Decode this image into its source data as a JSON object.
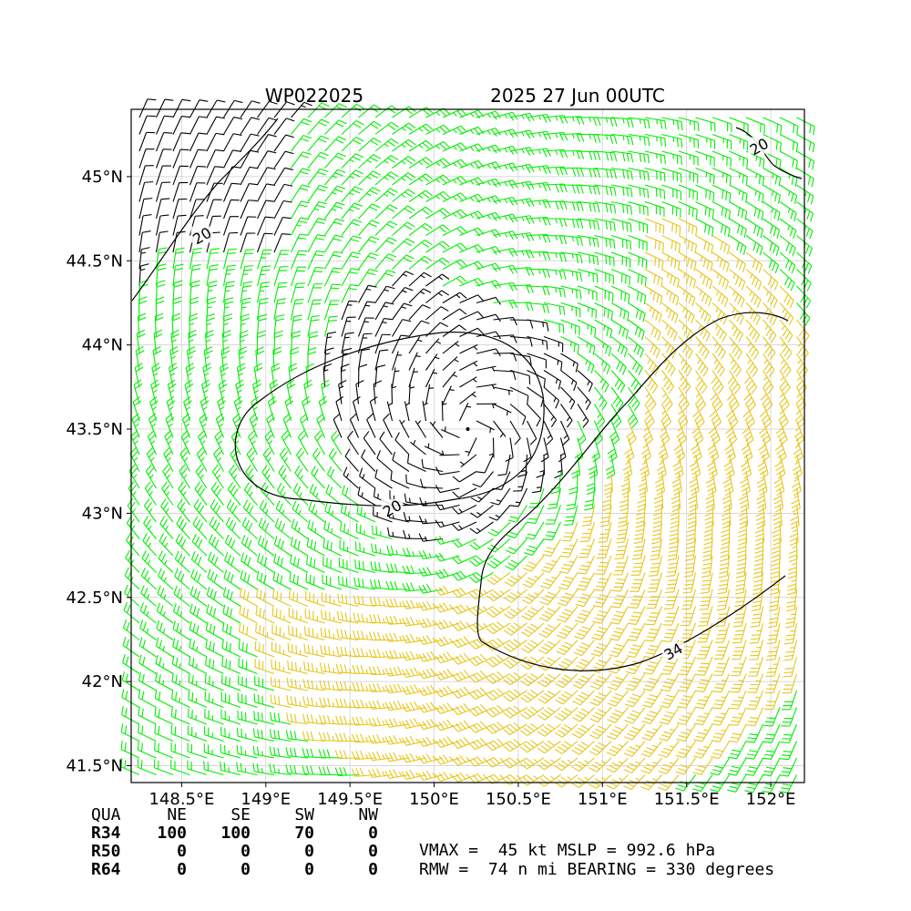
{
  "chart_data": {
    "type": "wind-barb-map",
    "title_left": "WP022025",
    "title_right": "2025 27 Jun 00UTC",
    "xlim": [
      148.2,
      152.2
    ],
    "ylim": [
      41.4,
      45.4
    ],
    "x_ticks": [
      148.5,
      149.0,
      149.5,
      150.0,
      150.5,
      151.0,
      151.5,
      152.0
    ],
    "x_tick_labels": [
      "148.5°E",
      "149°E",
      "149.5°E",
      "150°E",
      "150.5°E",
      "151°E",
      "151.5°E",
      "152°E"
    ],
    "y_ticks": [
      41.5,
      42.0,
      42.5,
      43.0,
      43.5,
      44.0,
      44.5,
      45.0
    ],
    "y_tick_labels": [
      "41.5°N",
      "42°N",
      "42.5°N",
      "43°N",
      "43.5°N",
      "44°N",
      "44.5°N",
      "45°N"
    ],
    "grid": true,
    "storm_center": {
      "lon": 150.2,
      "lat": 43.5
    },
    "colors": {
      "below20": "#000000",
      "from20to34": "#00ee00",
      "above34": "#e6c619",
      "contour": "#000000"
    },
    "contours": [
      {
        "label": "20",
        "label_lon": 148.62,
        "label_lat": 44.65
      },
      {
        "label": "20",
        "label_lon": 149.75,
        "label_lat": 43.03
      },
      {
        "label": "20",
        "label_lon": 151.93,
        "label_lat": 45.18
      },
      {
        "label": "34",
        "label_lon": 151.42,
        "label_lat": 42.18
      }
    ]
  },
  "table": {
    "header": [
      "QUA",
      "NE",
      "SE",
      "SW",
      "NW"
    ],
    "rows": [
      {
        "label": "R34",
        "values": [
          "100",
          "100",
          "70",
          "0"
        ]
      },
      {
        "label": "R50",
        "values": [
          "0",
          "0",
          "0",
          "0"
        ]
      },
      {
        "label": "R64",
        "values": [
          "0",
          "0",
          "0",
          "0"
        ]
      }
    ]
  },
  "summary": {
    "line1": "VMAX =  45 kt MSLP = 992.6 hPa",
    "line2": "RMW =  74 n mi BEARING = 330 degrees"
  }
}
